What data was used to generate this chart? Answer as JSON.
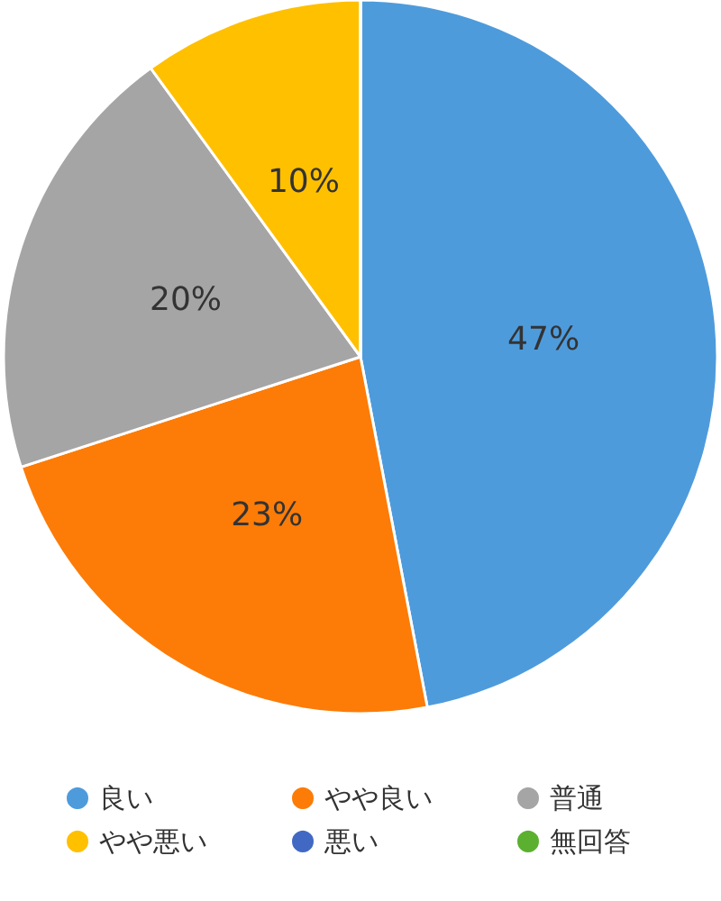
{
  "chart_data": {
    "type": "pie",
    "categories": [
      "良い",
      "やや良い",
      "普通",
      "やや悪い",
      "悪い",
      "無回答"
    ],
    "values": [
      47,
      23,
      20,
      10,
      0,
      0
    ],
    "colors": [
      "#4e9bdc",
      "#fc7c07",
      "#a5a5a5",
      "#ffc000",
      "#4169c4",
      "#5bb030"
    ],
    "value_labels": [
      "47%",
      "23%",
      "20%",
      "10%",
      null,
      null
    ],
    "legend": "bottom"
  }
}
